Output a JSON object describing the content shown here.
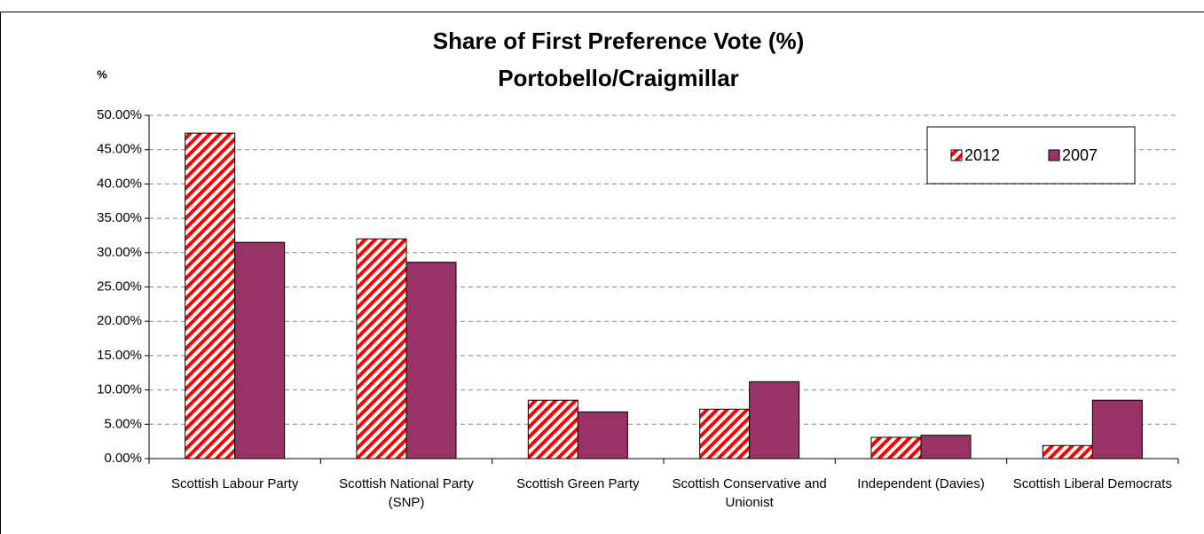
{
  "chart_data": {
    "type": "bar",
    "title": "Share of First Preference Vote (%)",
    "subtitle": "Portobello/Craigmillar",
    "y_label": "%",
    "categories": [
      "Scottish Labour Party",
      "Scottish National Party (SNP)",
      "Scottish Green Party",
      "Scottish Conservative and Unionist",
      "Independent (Davies)",
      "Scottish Liberal Democrats"
    ],
    "series": [
      {
        "name": "2012",
        "color": "#ff0000",
        "pattern": "hatch",
        "values": [
          47.4,
          32.0,
          8.5,
          7.2,
          3.1,
          1.9
        ]
      },
      {
        "name": "2007",
        "color": "#993366",
        "pattern": "solid",
        "values": [
          31.5,
          28.6,
          6.8,
          11.2,
          3.4,
          8.5
        ]
      }
    ],
    "ylim": [
      0,
      50
    ],
    "yticks": [
      {
        "value": 0,
        "label": "0.00%"
      },
      {
        "value": 5,
        "label": "5.00%"
      },
      {
        "value": 10,
        "label": "10.00%"
      },
      {
        "value": 15,
        "label": "15.00%"
      },
      {
        "value": 20,
        "label": "20.00%"
      },
      {
        "value": 25,
        "label": "25.00%"
      },
      {
        "value": 30,
        "label": "30.00%"
      },
      {
        "value": 35,
        "label": "35.00%"
      },
      {
        "value": 40,
        "label": "40.00%"
      },
      {
        "value": 45,
        "label": "45.00%"
      },
      {
        "value": 50,
        "label": "50.00%"
      }
    ],
    "grid": true,
    "legend": "top-right"
  }
}
